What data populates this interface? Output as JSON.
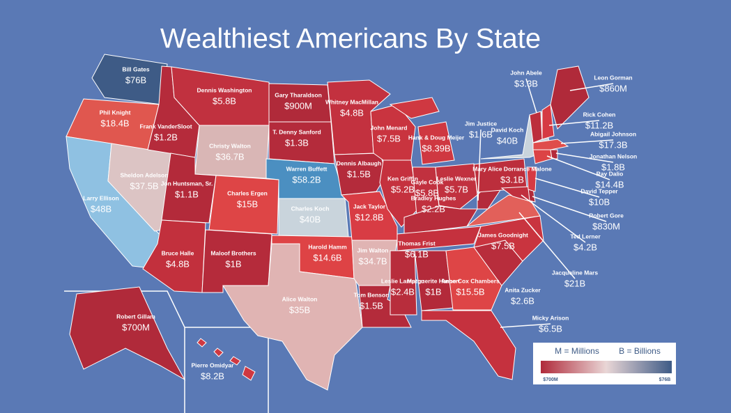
{
  "title": "Wealthiest Americans By State",
  "states": [
    {
      "person": "Bill Gates",
      "worth": "$76B",
      "color": "#3e5b86"
    },
    {
      "person": "Phil Knight",
      "worth": "$18.4B",
      "color": "#e0574f"
    },
    {
      "person": "Larry Ellison",
      "worth": "$48B",
      "color": "#8fc1e2"
    },
    {
      "person": "Sheldon Adelson",
      "worth": "$37.5B",
      "color": "#dcc4c4"
    },
    {
      "person": "Frank VanderSloot",
      "worth": "$1.2B",
      "color": "#b52b3b"
    },
    {
      "person": "Dennis Washington",
      "worth": "$5.8B",
      "color": "#c1313f"
    },
    {
      "person": "Christy Walton",
      "worth": "$36.7B",
      "color": "#d9b6b5"
    },
    {
      "person": "Jon Huntsman, Sr.",
      "worth": "$1.1B",
      "color": "#b32a3a"
    },
    {
      "person": "Charles Ergen",
      "worth": "$15B",
      "color": "#de4546"
    },
    {
      "person": "Bruce Halle",
      "worth": "$4.8B",
      "color": "#c2303d"
    },
    {
      "person": "Maloof Brothers",
      "worth": "$1B",
      "color": "#b52b3b"
    },
    {
      "person": "Gary Tharaldson",
      "worth": "$900M",
      "color": "#b02a3a"
    },
    {
      "person": "T. Denny Sanford",
      "worth": "$1.3B",
      "color": "#b42b3b"
    },
    {
      "person": "Warren Buffett",
      "worth": "$58.2B",
      "color": "#4b8fc1"
    },
    {
      "person": "Charles Koch",
      "worth": "$40B",
      "color": "#c9d4dc"
    },
    {
      "person": "Harold Hamm",
      "worth": "$14.6B",
      "color": "#de4345"
    },
    {
      "person": "Alice Walton",
      "worth": "$35B",
      "color": "#e0b4b3"
    },
    {
      "person": "Whitney MacMillan",
      "worth": "$4.8B",
      "color": "#c3313f"
    },
    {
      "person": "Dennis Albaugh",
      "worth": "$1.5B",
      "color": "#b42b3b"
    },
    {
      "person": "Jack Taylor",
      "worth": "$12.8B",
      "color": "#d83c44"
    },
    {
      "person": "Jim Walton",
      "worth": "$34.7B",
      "color": "#e0b4b3"
    },
    {
      "person": "Tom Benson",
      "worth": "$1.5B",
      "color": "#b42b3b"
    },
    {
      "person": "John Menard",
      "worth": "$7.5B",
      "color": "#c9343f"
    },
    {
      "person": "Ken Griffin",
      "worth": "$5.2B",
      "color": "#c5313e"
    },
    {
      "person": "Hank & Doug Meijer",
      "worth": "$8.39B",
      "color": "#cf3841"
    },
    {
      "person": "Gayle Cook",
      "worth": "$5.8B",
      "color": "#c1313f"
    },
    {
      "person": "Leslie Wexner",
      "worth": "$5.7B",
      "color": "#c1313f"
    },
    {
      "person": "Bradley Hughes",
      "worth": "$2.2B",
      "color": "#b82d3c"
    },
    {
      "person": "Thomas Frist",
      "worth": "$6.1B",
      "color": "#c5313e"
    },
    {
      "person": "Leslie Lampton",
      "worth": "$2.4B",
      "color": "#b82d3c"
    },
    {
      "person": "Marguerite Harbert",
      "worth": "$1B",
      "color": "#b32a3a"
    },
    {
      "person": "Anne Cox Chambers",
      "worth": "$15.5B",
      "color": "#de4546"
    },
    {
      "person": "Micky Arison",
      "worth": "$6.5B",
      "color": "#c5313e"
    },
    {
      "person": "Anita Zucker",
      "worth": "$2.6B",
      "color": "#b82d3c"
    },
    {
      "person": "James Goodnight",
      "worth": "$7.5B",
      "color": "#c9343f"
    },
    {
      "person": "Jacqueline Mars",
      "worth": "$21B",
      "color": "#e2605a"
    },
    {
      "person": "Jim Justice",
      "worth": "$1.6B",
      "color": "#b42b3b"
    },
    {
      "person": "Mary Alice Dorrance Malone",
      "worth": "$3.1B",
      "color": "#bc2e3c"
    },
    {
      "person": "David Koch",
      "worth": "$40B",
      "color": "#c9d4dc"
    },
    {
      "person": "Ted Lerner",
      "worth": "$4.2B",
      "color": "#c0303e"
    },
    {
      "person": "Robert Gore",
      "worth": "$830M",
      "color": "#b02a3a"
    },
    {
      "person": "David Tepper",
      "worth": "$10B",
      "color": "#d63a43"
    },
    {
      "person": "Ray Dalio",
      "worth": "$14.4B",
      "color": "#dc4345"
    },
    {
      "person": "Jonathan Nelson",
      "worth": "$1.8B",
      "color": "#b42b3b"
    },
    {
      "person": "Abigail Johnson",
      "worth": "$17.3B",
      "color": "#df4d4b"
    },
    {
      "person": "Rick Cohen",
      "worth": "$11.2B",
      "color": "#d63a43"
    },
    {
      "person": "John Abele",
      "worth": "$3.3B",
      "color": "#bc2e3c"
    },
    {
      "person": "Leon Gorman",
      "worth": "$860M",
      "color": "#b02a3a"
    },
    {
      "person": "Robert Gillam",
      "worth": "$700M",
      "color": "#b02a3a"
    },
    {
      "person": "Pierre Omidyar",
      "worth": "$8.2B",
      "color": "#cf3841"
    }
  ],
  "legend": {
    "millions": "M = Millions",
    "billions": "B = Billions",
    "min": "$700M",
    "max": "$76B",
    "colors": [
      "#b02a3a",
      "#e9d6d6",
      "#3e5b86"
    ]
  }
}
